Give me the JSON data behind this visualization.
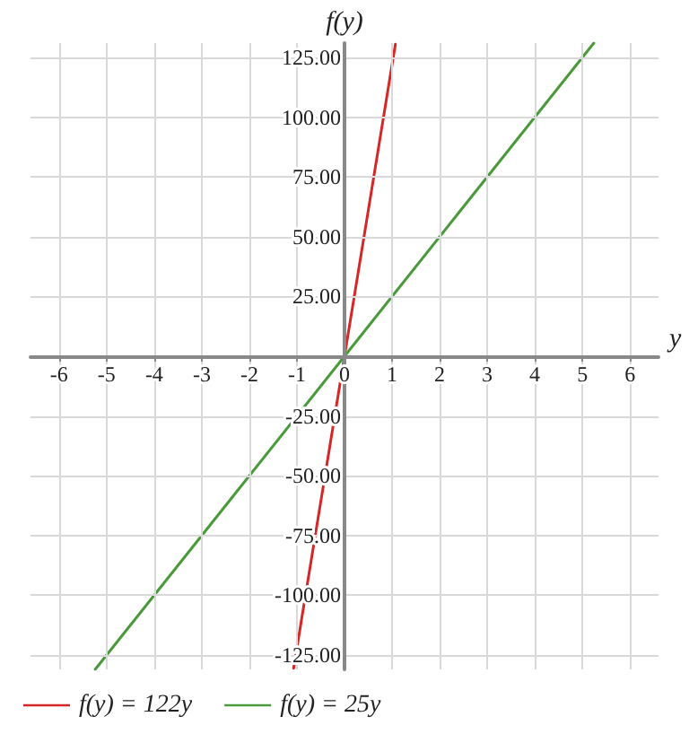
{
  "chart_data": {
    "type": "line",
    "xlabel": "y",
    "ylabel": "f(y)",
    "xlim": [
      -6.6,
      6.6
    ],
    "ylim": [
      -131,
      131
    ],
    "xticks": [
      -6,
      -5,
      -4,
      -3,
      -2,
      -1,
      0,
      1,
      2,
      3,
      4,
      5,
      6
    ],
    "yticks": [
      {
        "value": -125,
        "label": "-125.00"
      },
      {
        "value": -100,
        "label": "-100.00"
      },
      {
        "value": -75,
        "label": "-75.00"
      },
      {
        "value": -50,
        "label": "-50.00"
      },
      {
        "value": -25,
        "label": "-25.00"
      },
      {
        "value": 25,
        "label": "25.00"
      },
      {
        "value": 50,
        "label": "50.00"
      },
      {
        "value": 75,
        "label": "75.00"
      },
      {
        "value": 100,
        "label": "100.00"
      },
      {
        "value": 125,
        "label": "125.00"
      }
    ],
    "series": [
      {
        "name": "f(y) = 122y",
        "color": "#d62728",
        "x": [
          -1.07,
          0,
          1.07
        ],
        "values": [
          -130.5,
          0,
          130.5
        ]
      },
      {
        "name": "f(y) = 25y",
        "color": "#4a9a3c",
        "x": [
          -5.24,
          0,
          5.24
        ],
        "values": [
          -131,
          0,
          131
        ]
      }
    ],
    "grid": true,
    "legend": "bottom left",
    "marker": "none",
    "line_style": "solid"
  }
}
